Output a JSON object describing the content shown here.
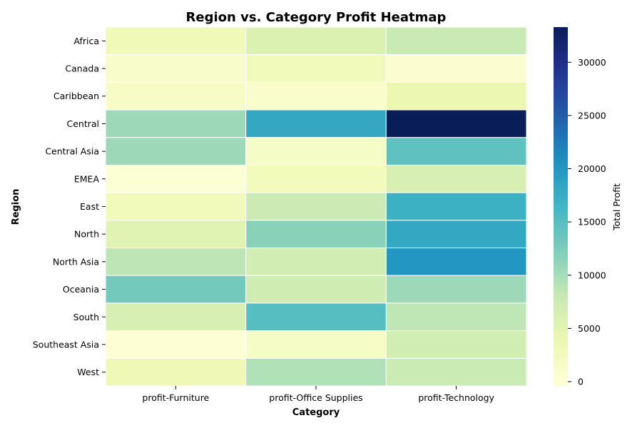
{
  "chart_data": {
    "type": "heatmap",
    "title": "Region vs. Category Profit Heatmap",
    "xlabel": "Category",
    "ylabel": "Region",
    "x_categories": [
      "profit-Furniture",
      "profit-Office Supplies",
      "profit-Technology"
    ],
    "y_categories": [
      "Africa",
      "Canada",
      "Caribbean",
      "Central",
      "Central Asia",
      "EMEA",
      "East",
      "North",
      "North Asia",
      "Oceania",
      "South",
      "Southeast Asia",
      "West"
    ],
    "values": [
      [
        3200,
        5900,
        7800
      ],
      [
        1200,
        2800,
        600
      ],
      [
        1500,
        1100,
        3900
      ],
      [
        10500,
        18000,
        33200
      ],
      [
        10500,
        1600,
        14400
      ],
      [
        200,
        2700,
        6200
      ],
      [
        2800,
        7500,
        17000
      ],
      [
        5200,
        11600,
        18000
      ],
      [
        8600,
        6900,
        20000
      ],
      [
        13000,
        7100,
        10500
      ],
      [
        6200,
        15000,
        8500
      ],
      [
        150,
        1600,
        7000
      ],
      [
        3400,
        9300,
        7600
      ]
    ],
    "colorbar": {
      "label": "Total Profit",
      "min": -400,
      "max": 33300,
      "ticks": [
        0,
        5000,
        10000,
        15000,
        20000,
        25000,
        30000
      ],
      "colormap": "YlGnBu"
    },
    "grid": false
  }
}
